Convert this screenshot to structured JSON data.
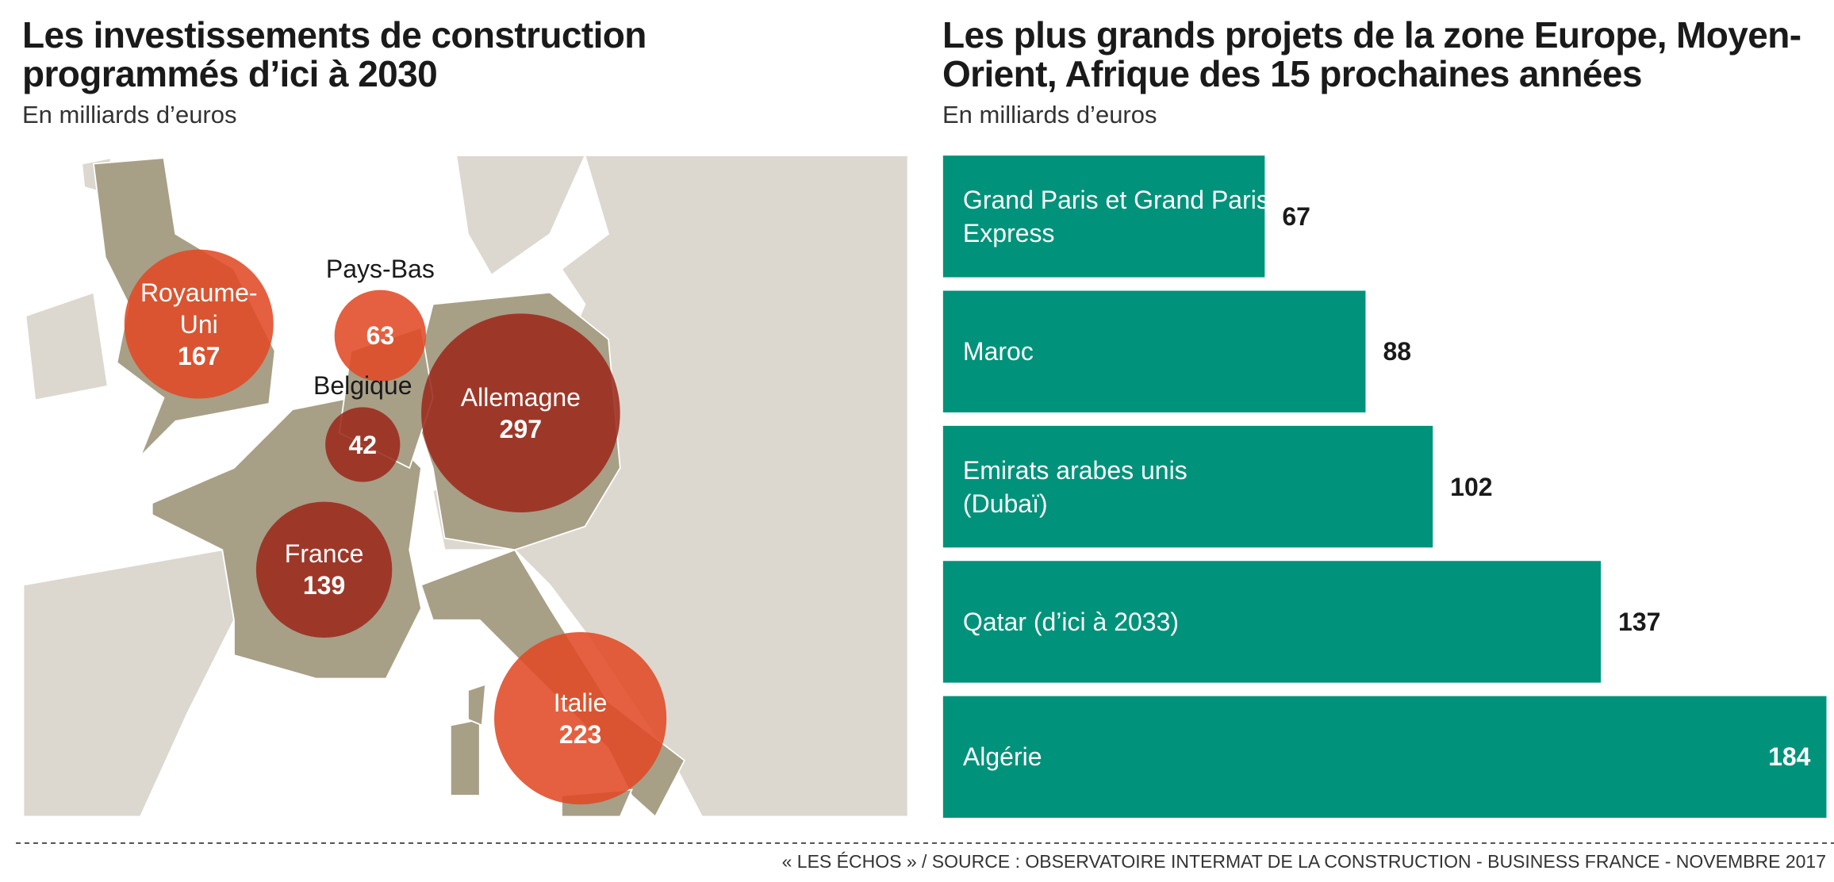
{
  "chart_data": [
    {
      "type": "map",
      "title": "Les investissements de construction programmés d’ici à 2030",
      "subtitle": "En milliards d’euros",
      "categories": [
        "Royaume-Uni",
        "Pays-Bas",
        "Belgique",
        "Allemagne",
        "France",
        "Italie"
      ],
      "values": [
        167,
        63,
        42,
        297,
        139,
        223
      ],
      "colors": [
        "#e04a26",
        "#e04a26",
        "#9b2a1d",
        "#9b2a1d",
        "#9b2a1d",
        "#e04a26"
      ]
    },
    {
      "type": "bar",
      "orientation": "horizontal",
      "title": "Les plus grands projets de la zone Europe, Moyen-Orient, Afrique des 15 prochaines années",
      "subtitle": "En milliards d’euros",
      "categories": [
        "Grand Paris et Grand Paris Express",
        "Maroc",
        "Emirats arabes unis (Dubaï)",
        "Qatar (d’ici à 2033)",
        "Algérie"
      ],
      "values": [
        67,
        88,
        102,
        137,
        184
      ],
      "color": "#00927a",
      "xlim": [
        0,
        184
      ]
    }
  ],
  "source": "« LES ÉCHOS » / SOURCE : OBSERVATOIRE INTERMAT DE LA CONSTRUCTION - BUSINESS FRANCE - NOVEMBRE 2017"
}
